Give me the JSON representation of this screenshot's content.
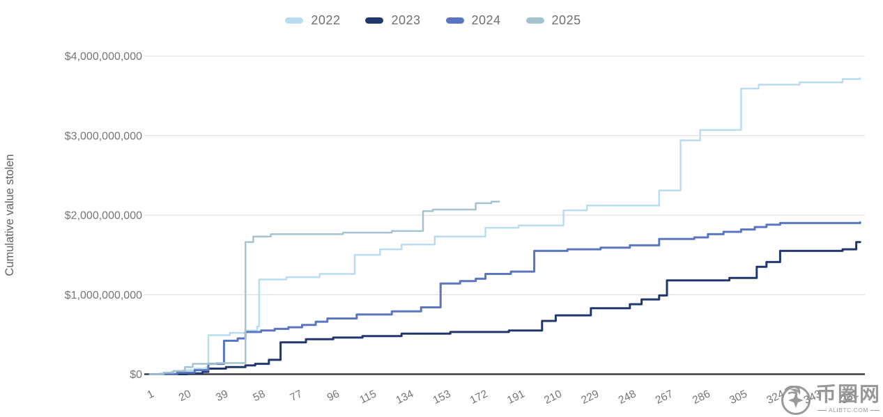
{
  "chart_data": {
    "type": "line",
    "step_interpolation": "step-after",
    "title": "",
    "xlabel": "",
    "ylabel": "Cumulative value stolen",
    "x_unit": "day of year",
    "x_range": [
      1,
      366
    ],
    "x_ticks": [
      1,
      20,
      39,
      58,
      77,
      96,
      115,
      134,
      153,
      172,
      191,
      210,
      229,
      248,
      267,
      286,
      305,
      324,
      343,
      362
    ],
    "y_unit": "USD",
    "y_ticks": [
      {
        "value_billions": 0,
        "label": "$0"
      },
      {
        "value_billions": 1,
        "label": "$1,000,000,000"
      },
      {
        "value_billions": 2,
        "label": "$2,000,000,000"
      },
      {
        "value_billions": 3,
        "label": "$3,000,000,000"
      },
      {
        "value_billions": 4,
        "label": "$4,000,000,000"
      }
    ],
    "grid": "horizontal",
    "legend_position": "top-center",
    "colors": {
      "grid": "#e1e1e1",
      "axis": "#3d3d3d",
      "tick_text": "#757575",
      "axis_title_text": "#616161"
    },
    "series": [
      {
        "name": "2022",
        "color": "#b9dcee",
        "width": 2.5,
        "points_day_vs_billions": [
          [
            1,
            0
          ],
          [
            6,
            0.01
          ],
          [
            12,
            0.03
          ],
          [
            18,
            0.05
          ],
          [
            24,
            0.07
          ],
          [
            30,
            0.09
          ],
          [
            31,
            0.49
          ],
          [
            42,
            0.52
          ],
          [
            50,
            0.55
          ],
          [
            56,
            0.6
          ],
          [
            57,
            1.19
          ],
          [
            71,
            1.22
          ],
          [
            88,
            1.26
          ],
          [
            106,
            1.5
          ],
          [
            119,
            1.57
          ],
          [
            130,
            1.63
          ],
          [
            147,
            1.73
          ],
          [
            173,
            1.84
          ],
          [
            190,
            1.87
          ],
          [
            213,
            2.06
          ],
          [
            225,
            2.12
          ],
          [
            262,
            2.31
          ],
          [
            273,
            2.94
          ],
          [
            283,
            3.07
          ],
          [
            304,
            3.59
          ],
          [
            313,
            3.64
          ],
          [
            334,
            3.67
          ],
          [
            356,
            3.71
          ],
          [
            365,
            3.72
          ]
        ]
      },
      {
        "name": "2023",
        "color": "#22376b",
        "width": 3,
        "points_day_vs_billions": [
          [
            1,
            0
          ],
          [
            20,
            0.01
          ],
          [
            28,
            0.03
          ],
          [
            31,
            0.07
          ],
          [
            40,
            0.09
          ],
          [
            50,
            0.11
          ],
          [
            55,
            0.13
          ],
          [
            62,
            0.18
          ],
          [
            68,
            0.4
          ],
          [
            81,
            0.44
          ],
          [
            95,
            0.46
          ],
          [
            110,
            0.48
          ],
          [
            130,
            0.51
          ],
          [
            155,
            0.53
          ],
          [
            185,
            0.55
          ],
          [
            202,
            0.67
          ],
          [
            209,
            0.74
          ],
          [
            227,
            0.83
          ],
          [
            247,
            0.88
          ],
          [
            253,
            0.94
          ],
          [
            262,
            0.99
          ],
          [
            266,
            1.18
          ],
          [
            298,
            1.21
          ],
          [
            312,
            1.35
          ],
          [
            317,
            1.41
          ],
          [
            324,
            1.55
          ],
          [
            356,
            1.57
          ],
          [
            363,
            1.66
          ],
          [
            365,
            1.66
          ]
        ]
      },
      {
        "name": "2024",
        "color": "#5b76c1",
        "width": 3,
        "points_day_vs_billions": [
          [
            1,
            0
          ],
          [
            15,
            0.02
          ],
          [
            24,
            0.05
          ],
          [
            31,
            0.13
          ],
          [
            39,
            0.42
          ],
          [
            46,
            0.45
          ],
          [
            50,
            0.53
          ],
          [
            58,
            0.55
          ],
          [
            65,
            0.57
          ],
          [
            72,
            0.59
          ],
          [
            79,
            0.62
          ],
          [
            86,
            0.66
          ],
          [
            92,
            0.7
          ],
          [
            107,
            0.75
          ],
          [
            125,
            0.79
          ],
          [
            140,
            0.84
          ],
          [
            150,
            1.14
          ],
          [
            160,
            1.17
          ],
          [
            168,
            1.2
          ],
          [
            173,
            1.26
          ],
          [
            186,
            1.29
          ],
          [
            198,
            1.55
          ],
          [
            215,
            1.57
          ],
          [
            232,
            1.59
          ],
          [
            247,
            1.62
          ],
          [
            262,
            1.7
          ],
          [
            280,
            1.72
          ],
          [
            287,
            1.76
          ],
          [
            295,
            1.79
          ],
          [
            304,
            1.82
          ],
          [
            311,
            1.85
          ],
          [
            317,
            1.88
          ],
          [
            324,
            1.9
          ],
          [
            365,
            1.91
          ]
        ]
      },
      {
        "name": "2025",
        "color": "#a4c3cf",
        "width": 2.5,
        "points_day_vs_billions": [
          [
            1,
            0
          ],
          [
            8,
            0.02
          ],
          [
            13,
            0.04
          ],
          [
            19,
            0.09
          ],
          [
            23,
            0.13
          ],
          [
            35,
            0.14
          ],
          [
            50,
            1.66
          ],
          [
            54,
            1.73
          ],
          [
            63,
            1.76
          ],
          [
            100,
            1.78
          ],
          [
            125,
            1.8
          ],
          [
            141,
            2.05
          ],
          [
            146,
            2.07
          ],
          [
            168,
            2.15
          ],
          [
            176,
            2.17
          ],
          [
            180,
            2.17
          ]
        ]
      }
    ]
  },
  "legend": {
    "items": [
      {
        "label": "2022",
        "color": "#b9dcee"
      },
      {
        "label": "2023",
        "color": "#22376b"
      },
      {
        "label": "2024",
        "color": "#5b76c1"
      },
      {
        "label": "2025",
        "color": "#a4c3cf"
      }
    ]
  },
  "watermark": {
    "cn": "币圈网",
    "domain": "ALIBTC.COM"
  }
}
